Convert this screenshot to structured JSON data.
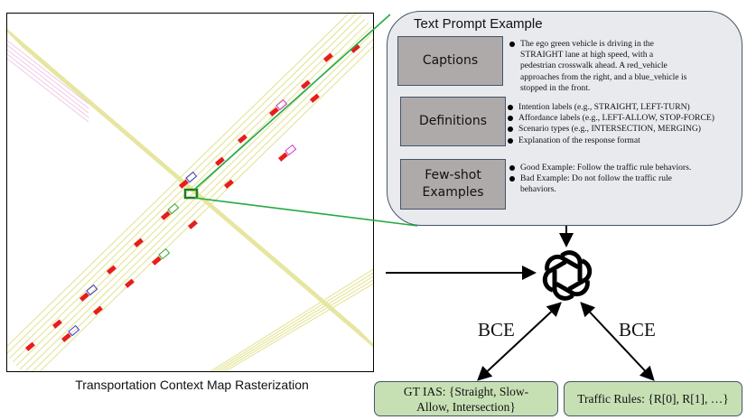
{
  "map": {
    "caption": "Transportation Context Map Rasterization"
  },
  "prompt": {
    "title": "Text Prompt Example",
    "sections": [
      {
        "label": "Captions",
        "bullets": [
          "The ego green vehicle is driving in the STRAIGHT lane at high speed, with a pedestrian crosswalk ahead. A red_vehicle approaches from the right, and a blue_vehicle is stopped in the front."
        ]
      },
      {
        "label": "Definitions",
        "bullets": [
          "Intention labels (e.g., STRAIGHT, LEFT-TURN)",
          "Affordance labels (e.g., LEFT-ALLOW, STOP-FORCE)",
          "Scenario types (e.g., INTERSECTION, MERGING)",
          "Explanation of the response format"
        ]
      },
      {
        "label_line1": "Few-shot",
        "label_line2": "Examples",
        "bullets": [
          "Good Example: Follow the traffic rule behaviors.",
          "Bad Example: Do not follow the traffic rule behaviors."
        ]
      }
    ]
  },
  "model": {
    "icon": "openai-logo-icon"
  },
  "loss": {
    "left_label": "BCE",
    "right_label": "BCE"
  },
  "outputs": {
    "gt_line1": "GT IAS: {Straight, Slow-",
    "gt_line2": "Allow, Intersection}",
    "rules": "Traffic Rules: {R[0], R[1], …}"
  },
  "colors": {
    "ego": "#1e7b1e",
    "road": "#e6e6a0",
    "vehicle": "#e81c1c",
    "prompt_bg": "#e9eaee",
    "section_box": "#aeaaaa",
    "output_box": "#c6e0b4",
    "link": "#22aa44"
  }
}
